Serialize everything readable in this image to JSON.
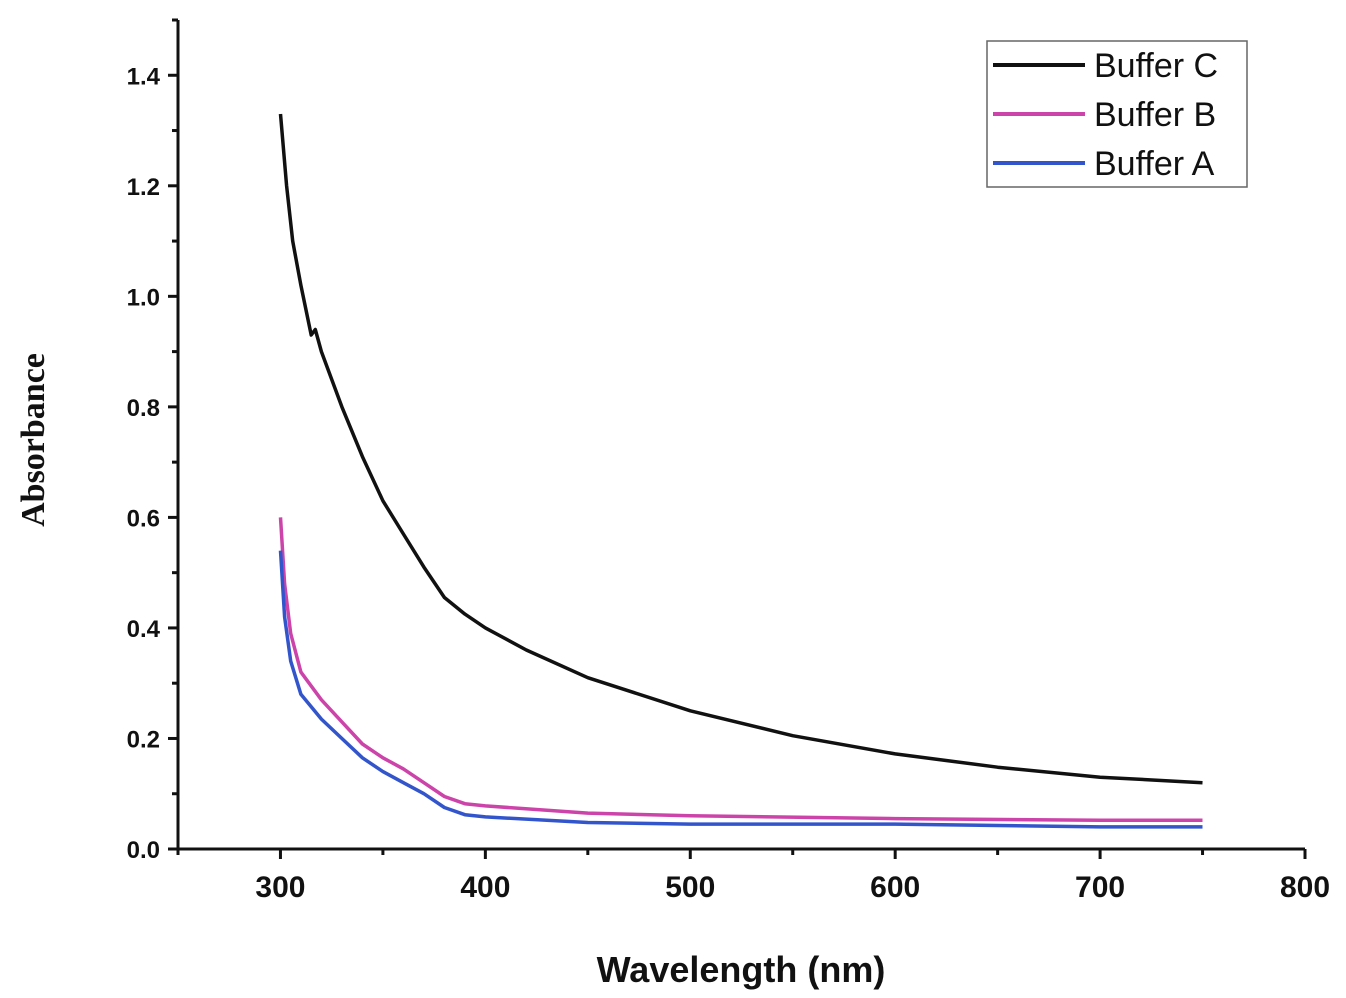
{
  "chart_data": {
    "type": "line",
    "title": "",
    "xlabel": "Wavelength (nm)",
    "ylabel": "Absorbance",
    "xlim": [
      250,
      800
    ],
    "ylim": [
      0,
      1.5
    ],
    "xticks": [
      "300",
      "400",
      "500",
      "600",
      "700",
      "800"
    ],
    "xtick_values": [
      300,
      400,
      500,
      600,
      700,
      800
    ],
    "yticks": [
      "0.0",
      "0.2",
      "0.4",
      "0.6",
      "0.8",
      "1.0",
      "1.2",
      "1.4"
    ],
    "ytick_values": [
      0,
      0.2,
      0.4,
      0.6,
      0.8,
      1.0,
      1.2,
      1.4
    ],
    "grid": false,
    "legend_position": "top-right",
    "series": [
      {
        "name": "Buffer C",
        "color": "#111111",
        "x": [
          300,
          303,
          306,
          310,
          315,
          317,
          320,
          330,
          340,
          350,
          360,
          370,
          380,
          390,
          400,
          420,
          450,
          500,
          550,
          600,
          650,
          700,
          750
        ],
        "y": [
          1.33,
          1.2,
          1.1,
          1.02,
          0.93,
          0.94,
          0.9,
          0.8,
          0.71,
          0.63,
          0.57,
          0.51,
          0.455,
          0.425,
          0.4,
          0.36,
          0.31,
          0.25,
          0.205,
          0.172,
          0.148,
          0.13,
          0.12
        ]
      },
      {
        "name": "Buffer B",
        "color": "#cc44aa",
        "x": [
          300,
          302,
          305,
          310,
          320,
          330,
          340,
          350,
          360,
          370,
          380,
          390,
          400,
          450,
          500,
          600,
          700,
          750
        ],
        "y": [
          0.6,
          0.48,
          0.39,
          0.32,
          0.27,
          0.23,
          0.19,
          0.165,
          0.145,
          0.12,
          0.095,
          0.082,
          0.078,
          0.065,
          0.06,
          0.055,
          0.052,
          0.052
        ],
        "_": null
      },
      {
        "name": "Buffer A",
        "color": "#3355cc",
        "x": [
          300,
          302,
          305,
          310,
          320,
          330,
          340,
          350,
          360,
          370,
          380,
          390,
          400,
          450,
          500,
          600,
          700,
          750
        ],
        "y": [
          0.54,
          0.42,
          0.34,
          0.28,
          0.235,
          0.2,
          0.165,
          0.14,
          0.12,
          0.1,
          0.075,
          0.062,
          0.058,
          0.048,
          0.045,
          0.045,
          0.04,
          0.04
        ]
      }
    ]
  }
}
